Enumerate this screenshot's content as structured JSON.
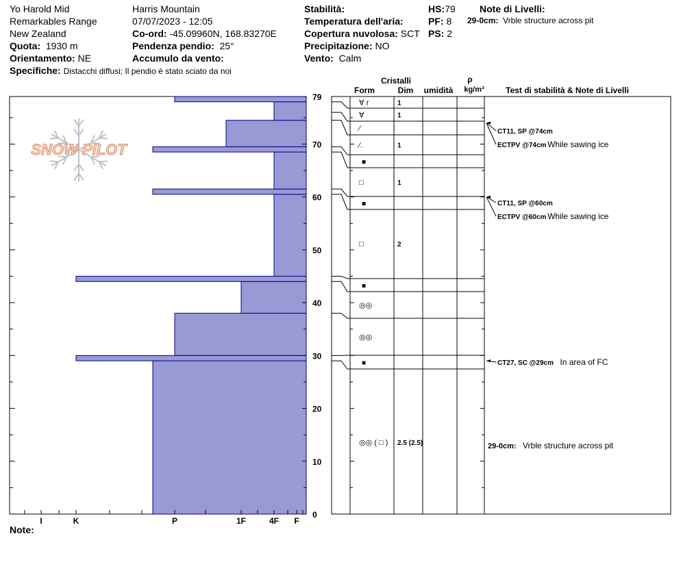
{
  "header": {
    "col1": {
      "site": "Yo Harold Mid",
      "range": "Remarkables Range",
      "country": "New Zealand",
      "elevation_label": "Quota:",
      "elevation": "1930 m",
      "aspect_label": "Orientamento:",
      "aspect": "NE",
      "specifics_label": "Specifiche:",
      "specifics": "Distacchi diffusi;  Il pendio è stato sciato da noi"
    },
    "col2": {
      "location": "Harris Mountain",
      "datetime": "07/07/2023 - 12:05",
      "coord_label": "Co-ord:",
      "coord": "-45.09960N, 168.83270E",
      "slope_label": "Pendenza pendio:",
      "slope": "25°",
      "wind_load_label": "Accumulo da vento:"
    },
    "col3": {
      "stability_label": "Stabilità:",
      "air_temp_label": "Temperatura dell'aria:",
      "cloud_label": "Copertura nuvolosa:",
      "cloud": "SCT",
      "precip_label": "Precipitazione:",
      "precip": "NO",
      "wind_label": "Vento:",
      "wind": "Calm"
    },
    "col4": {
      "hs_label": "HS:",
      "hs": "79",
      "pf_label": "PF:",
      "pf": "8",
      "ps_label": "PS:",
      "ps": "2"
    },
    "col5": {
      "notes_label": "Note di Livelli:",
      "note1_depth": "29-0cm:",
      "note1_text": "Vrble structure across pit"
    }
  },
  "logo_text": "SNOW PILOT",
  "note_label": "Note:",
  "table_headers": {
    "crystals": "Cristalli",
    "form": "Form",
    "size": "Dim",
    "moisture": "umidità",
    "rho": "ρ",
    "density_unit": "kg/m³",
    "tests_notes": "Test di stabilità & Note di Livelli"
  },
  "chart_data": {
    "type": "bar",
    "description_axis": "snow depth (cm) vs hand hardness",
    "y_axis": {
      "min": 0,
      "max": 79,
      "ticks": [
        0,
        10,
        20,
        30,
        40,
        50,
        60,
        70,
        79
      ]
    },
    "x_axis": {
      "ticks": [
        "I",
        "K",
        "P",
        "1F",
        "4F",
        "F"
      ],
      "direction": "reversed"
    },
    "hardness_layers": [
      {
        "bottom": 0,
        "top": 29,
        "hardness": "P-"
      },
      {
        "bottom": 29,
        "top": 30,
        "hardness": "K"
      },
      {
        "bottom": 30,
        "top": 38,
        "hardness": "P"
      },
      {
        "bottom": 38,
        "top": 44,
        "hardness": "1F"
      },
      {
        "bottom": 44,
        "top": 45,
        "hardness": "K"
      },
      {
        "bottom": 45,
        "top": 60.5,
        "hardness": "4F"
      },
      {
        "bottom": 60.5,
        "top": 61.5,
        "hardness": "P-"
      },
      {
        "bottom": 61.5,
        "top": 68.5,
        "hardness": "4F"
      },
      {
        "bottom": 68.5,
        "top": 69.5,
        "hardness": "P-"
      },
      {
        "bottom": 69.5,
        "top": 74.5,
        "hardness": "1F+"
      },
      {
        "bottom": 74.5,
        "top": 78,
        "hardness": "4F"
      },
      {
        "bottom": 78,
        "top": 79,
        "hardness": "P"
      }
    ],
    "layers": [
      {
        "top": 79,
        "bottom": 78,
        "form": "∀ r",
        "size": "1"
      },
      {
        "top": 78,
        "bottom": 76,
        "form": "∀",
        "size": "1"
      },
      {
        "top": 76,
        "bottom": 74.5,
        "form": "⁄",
        "size": ""
      },
      {
        "top": 74.5,
        "bottom": 69.5,
        "form": "⁄.",
        "size": "1"
      },
      {
        "top": 69.5,
        "bottom": 68.5,
        "form": "■",
        "size": ""
      },
      {
        "top": 68.5,
        "bottom": 61.5,
        "form": "□",
        "size": "1"
      },
      {
        "top": 61.5,
        "bottom": 60.5,
        "form": "■",
        "size": ""
      },
      {
        "top": 60.5,
        "bottom": 45,
        "form": "□",
        "size": "2"
      },
      {
        "top": 45,
        "bottom": 44,
        "form": "■",
        "size": ""
      },
      {
        "top": 44,
        "bottom": 38,
        "form": "◎◎",
        "size": ""
      },
      {
        "top": 38,
        "bottom": 30,
        "form": "◎◎",
        "size": ""
      },
      {
        "top": 30,
        "bottom": 29,
        "form": "■",
        "size": ""
      },
      {
        "top": 29,
        "bottom": 0,
        "form": "◎◎ ( □ )",
        "size": "2.5 (2.5)"
      }
    ],
    "tests": [
      {
        "depth": 74,
        "label": "CT11, SP @74cm",
        "note": ""
      },
      {
        "depth": 74,
        "label": "ECTPV @74cm",
        "note": "While sawing ice"
      },
      {
        "depth": 60,
        "label": "CT11, SP @60cm",
        "note": ""
      },
      {
        "depth": 60,
        "label": "ECTPV @60cm",
        "note": "While sawing ice"
      },
      {
        "depth": 29,
        "label": "CT27, SC @29cm",
        "note": "In area of FC"
      }
    ],
    "layer_notes": [
      {
        "depth": 14.5,
        "label": "29-0cm:",
        "note": "Vrble structure across pit"
      }
    ]
  }
}
